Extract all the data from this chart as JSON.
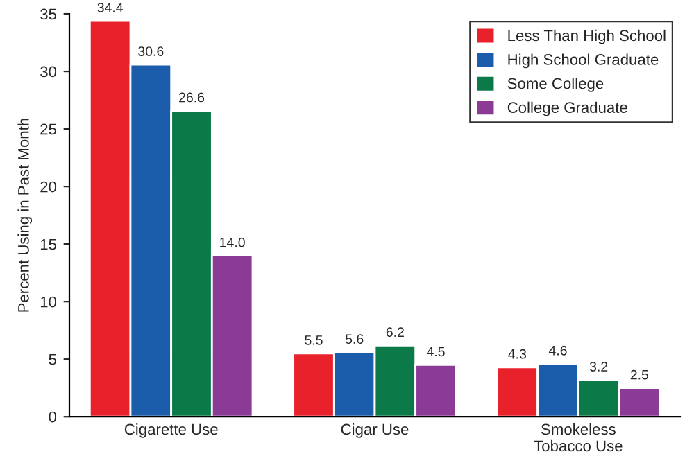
{
  "chart_data": {
    "type": "bar",
    "ylabel": "Percent Using in Past Month",
    "categories": [
      "Cigarette Use",
      "Cigar Use",
      "Smokeless\nTobacco Use"
    ],
    "series": [
      {
        "name": "Less Than High School",
        "color": "#e8212b",
        "values": [
          34.4,
          5.5,
          4.3
        ],
        "value_labels": [
          "34.4",
          "5.5",
          "4.3"
        ]
      },
      {
        "name": "High School Graduate",
        "color": "#1b5cab",
        "values": [
          30.6,
          5.6,
          4.6
        ],
        "value_labels": [
          "30.6",
          "5.6",
          "4.6"
        ]
      },
      {
        "name": "Some College",
        "color": "#0b7a48",
        "values": [
          26.6,
          6.2,
          3.2
        ],
        "value_labels": [
          "26.6",
          "6.2",
          "3.2"
        ]
      },
      {
        "name": "College Graduate",
        "color": "#8b3a96",
        "values": [
          14.0,
          4.5,
          2.5
        ],
        "value_labels": [
          "14.0",
          "4.5",
          "2.5"
        ]
      }
    ],
    "ylim": [
      0,
      35
    ],
    "yticks": [
      0,
      5,
      10,
      15,
      20,
      25,
      30,
      35
    ],
    "grid": false,
    "legend": "top right"
  }
}
